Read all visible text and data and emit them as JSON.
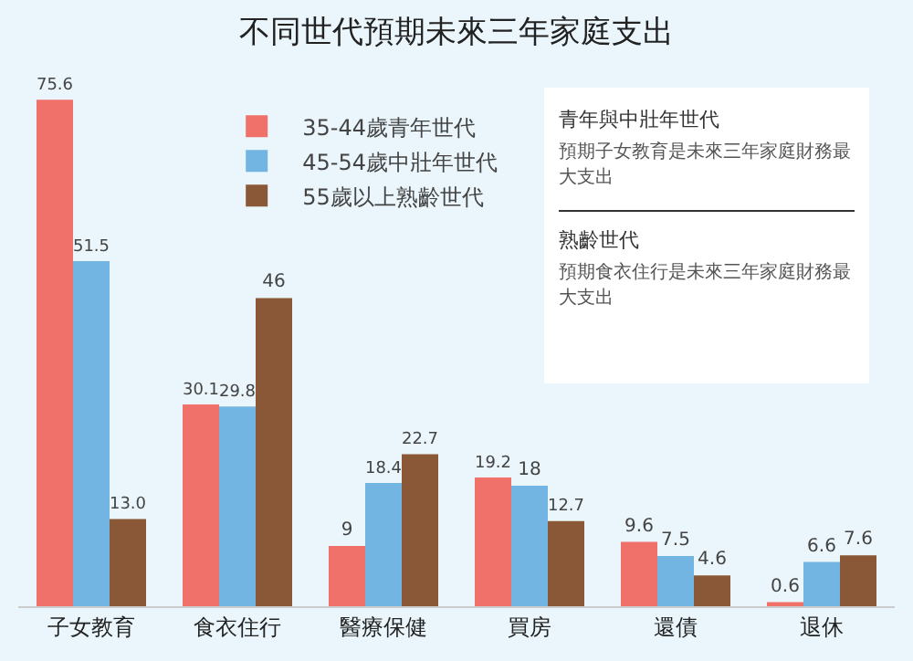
{
  "chart_data": {
    "type": "bar",
    "title": "不同世代預期未來三年家庭支出",
    "categories": [
      "子女教育",
      "食衣住行",
      "醫療保健",
      "買房",
      "還債",
      "退休"
    ],
    "series": [
      {
        "name": "35-44歲青年世代",
        "color": "#f0716a",
        "values": [
          75.6,
          30.1,
          9,
          19.2,
          9.6,
          0.6
        ],
        "value_labels": [
          "75.6",
          "30.1",
          "9",
          "19.2",
          "9.6",
          "0.6"
        ]
      },
      {
        "name": "45-54歲中壯年世代",
        "color": "#72b4e2",
        "values": [
          51.5,
          29.8,
          18.4,
          18,
          7.5,
          6.6
        ],
        "value_labels": [
          "51.5",
          "29.8",
          "18.4",
          "18",
          "7.5",
          "6.6"
        ]
      },
      {
        "name": "55歲以上熟齡世代",
        "color": "#8a5836",
        "values": [
          13.0,
          46,
          22.7,
          12.7,
          4.6,
          7.6
        ],
        "value_labels": [
          "13.0",
          "46",
          "22.7",
          "12.7",
          "4.6",
          "7.6"
        ]
      }
    ],
    "legend": "top left",
    "annotations": [
      "青年與中壯年世代",
      "預期子女教育是未來三年家庭財務最大支出",
      "熟齡世代",
      "預期食衣住行是未來三年家庭財務最大支出"
    ]
  }
}
